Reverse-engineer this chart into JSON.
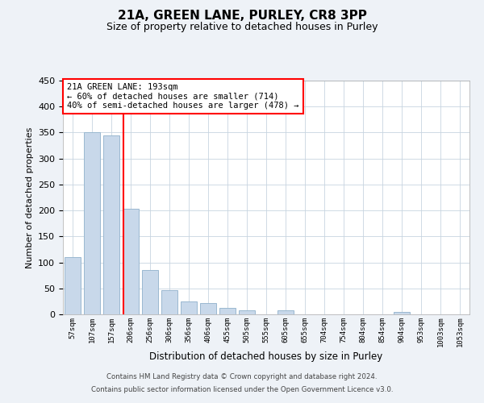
{
  "title": "21A, GREEN LANE, PURLEY, CR8 3PP",
  "subtitle": "Size of property relative to detached houses in Purley",
  "xlabel": "Distribution of detached houses by size in Purley",
  "ylabel": "Number of detached properties",
  "bar_labels": [
    "57sqm",
    "107sqm",
    "157sqm",
    "206sqm",
    "256sqm",
    "306sqm",
    "356sqm",
    "406sqm",
    "455sqm",
    "505sqm",
    "555sqm",
    "605sqm",
    "655sqm",
    "704sqm",
    "754sqm",
    "804sqm",
    "854sqm",
    "904sqm",
    "953sqm",
    "1003sqm",
    "1053sqm"
  ],
  "bar_heights": [
    110,
    350,
    345,
    203,
    85,
    47,
    25,
    22,
    12,
    7,
    0,
    8,
    0,
    0,
    0,
    0,
    0,
    5,
    0,
    0,
    0
  ],
  "bar_color": "#c8d8ea",
  "bar_edgecolor": "#9ab8d0",
  "ylim": [
    0,
    450
  ],
  "yticks": [
    0,
    50,
    100,
    150,
    200,
    250,
    300,
    350,
    400,
    450
  ],
  "red_line_x": 2.64,
  "annotation_text": "21A GREEN LANE: 193sqm\n← 60% of detached houses are smaller (714)\n40% of semi-detached houses are larger (478) →",
  "footnote1": "Contains HM Land Registry data © Crown copyright and database right 2024.",
  "footnote2": "Contains public sector information licensed under the Open Government Licence v3.0.",
  "bg_color": "#eef2f7",
  "plot_bg_color": "#ffffff",
  "grid_color": "#c8d4e0"
}
